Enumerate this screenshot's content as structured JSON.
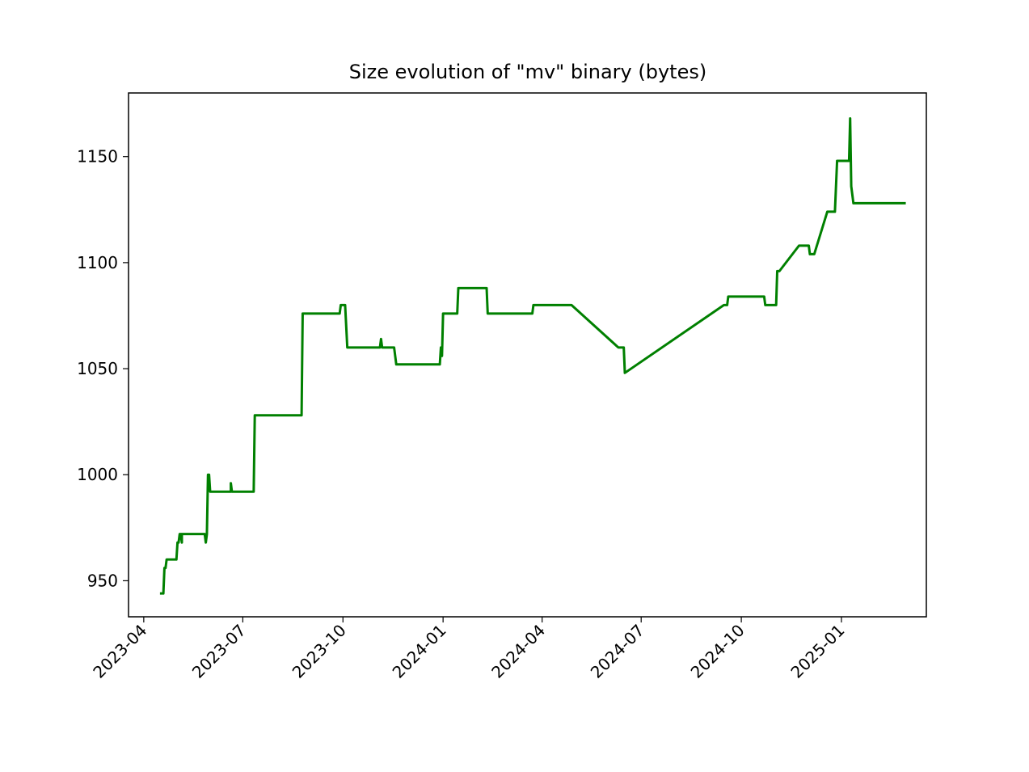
{
  "chart_data": {
    "type": "line",
    "title": "Size evolution of \"mv\" binary (bytes)",
    "xlabel": "",
    "ylabel": "",
    "x_ticks": [
      "2023-04",
      "2023-07",
      "2023-10",
      "2024-01",
      "2024-04",
      "2024-07",
      "2024-10",
      "2025-01"
    ],
    "y_ticks": [
      950,
      1000,
      1050,
      1100,
      1150
    ],
    "xlim": [
      "2023-03-18",
      "2025-03-20"
    ],
    "ylim": [
      933,
      1180
    ],
    "grid": false,
    "colors": {
      "line": "#008000"
    },
    "series": [
      {
        "x": [
          "2023-04-17",
          "2023-04-19",
          "2023-04-20",
          "2023-04-21",
          "2023-04-22",
          "2023-04-23",
          "2023-04-24",
          "2023-05-01",
          "2023-05-02",
          "2023-05-03",
          "2023-05-04",
          "2023-05-05",
          "2023-05-06",
          "2023-05-06",
          "2023-05-27",
          "2023-05-28",
          "2023-05-29",
          "2023-05-30",
          "2023-05-31",
          "2023-06-01",
          "2023-06-02",
          "2023-06-03",
          "2023-06-05",
          "2023-06-20",
          "2023-06-20",
          "2023-06-21",
          "2023-07-11",
          "2023-07-12",
          "2023-08-24",
          "2023-08-25",
          "2023-08-26",
          "2023-09-28",
          "2023-09-29",
          "2023-10-03",
          "2023-10-05",
          "2023-11-04",
          "2023-11-05",
          "2023-11-06",
          "2023-11-17",
          "2023-11-19",
          "2023-12-29",
          "2023-12-30",
          "2023-12-31",
          "2024-01-01",
          "2024-01-02",
          "2024-01-14",
          "2024-01-15",
          "2024-01-16",
          "2024-02-10",
          "2024-02-11",
          "2024-03-23",
          "2024-03-24",
          "2024-04-28",
          "2024-06-10",
          "2024-06-15",
          "2024-06-16",
          "2024-09-15",
          "2024-09-18",
          "2024-09-19",
          "2024-10-22",
          "2024-10-23",
          "2024-11-02",
          "2024-11-03",
          "2024-11-05",
          "2024-11-23",
          "2024-12-02",
          "2024-12-03",
          "2024-12-07",
          "2024-12-19",
          "2024-12-26",
          "2024-12-28",
          "2024-12-30",
          "2025-01-08",
          "2025-01-09",
          "2025-01-10",
          "2025-01-10",
          "2025-01-12",
          "2025-02-28"
        ],
        "values": [
          944,
          944,
          956,
          956,
          960,
          960,
          960,
          960,
          968,
          968,
          972,
          972,
          968,
          972,
          972,
          968,
          972,
          1000,
          1000,
          992,
          992,
          992,
          992,
          992,
          996,
          992,
          992,
          1028,
          1028,
          1076,
          1076,
          1076,
          1080,
          1080,
          1060,
          1060,
          1064,
          1060,
          1060,
          1052,
          1052,
          1060,
          1056,
          1076,
          1076,
          1076,
          1088,
          1088,
          1088,
          1076,
          1076,
          1080,
          1080,
          1060,
          1060,
          1048,
          1080,
          1080,
          1084,
          1084,
          1080,
          1080,
          1096,
          1096,
          1108,
          1108,
          1104,
          1104,
          1124,
          1124,
          1148,
          1148,
          1148,
          1168,
          1136,
          1136,
          1128,
          1128
        ]
      }
    ]
  }
}
